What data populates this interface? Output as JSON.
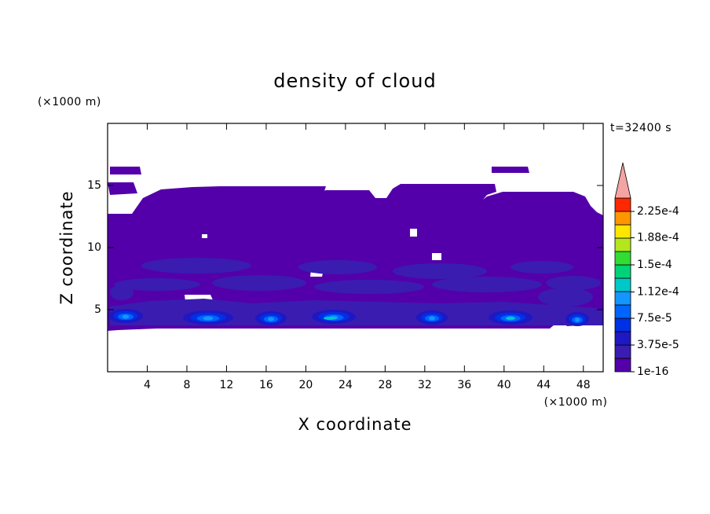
{
  "chart_data": {
    "type": "contour",
    "title": "density of cloud",
    "xlabel": "X coordinate",
    "ylabel": "Z coordinate",
    "xunit": "(×1000 m)",
    "yunit": "(×1000 m)",
    "time_label": "t=32400 s",
    "xlim": [
      0,
      50
    ],
    "ylim": [
      0,
      20
    ],
    "xticks": [
      4,
      8,
      12,
      16,
      20,
      24,
      28,
      32,
      36,
      40,
      44,
      48
    ],
    "yticks": [
      5,
      10,
      15
    ],
    "colorbar": {
      "lim": [
        1e-16,
        0.00024375
      ],
      "colors": [
        "#5400aa",
        "#3a1cb0",
        "#1e18c4",
        "#0030e4",
        "#0064ff",
        "#1496ff",
        "#00c8c8",
        "#00d278",
        "#32dc32",
        "#b4e61e",
        "#ffe600",
        "#ff9600",
        "#ff2800"
      ],
      "extend_color": "#f4a4a4",
      "ticks": [
        {
          "value": 1e-16,
          "label": "1e-16"
        },
        {
          "value": 3.75e-05,
          "label": "3.75e-5"
        },
        {
          "value": 7.5e-05,
          "label": "7.5e-5"
        },
        {
          "value": 0.000112,
          "label": "1.12e-4"
        },
        {
          "value": 0.00015,
          "label": "1.5e-4"
        },
        {
          "value": 0.000188,
          "label": "1.88e-4"
        },
        {
          "value": 0.000225,
          "label": "2.25e-4"
        }
      ]
    }
  }
}
